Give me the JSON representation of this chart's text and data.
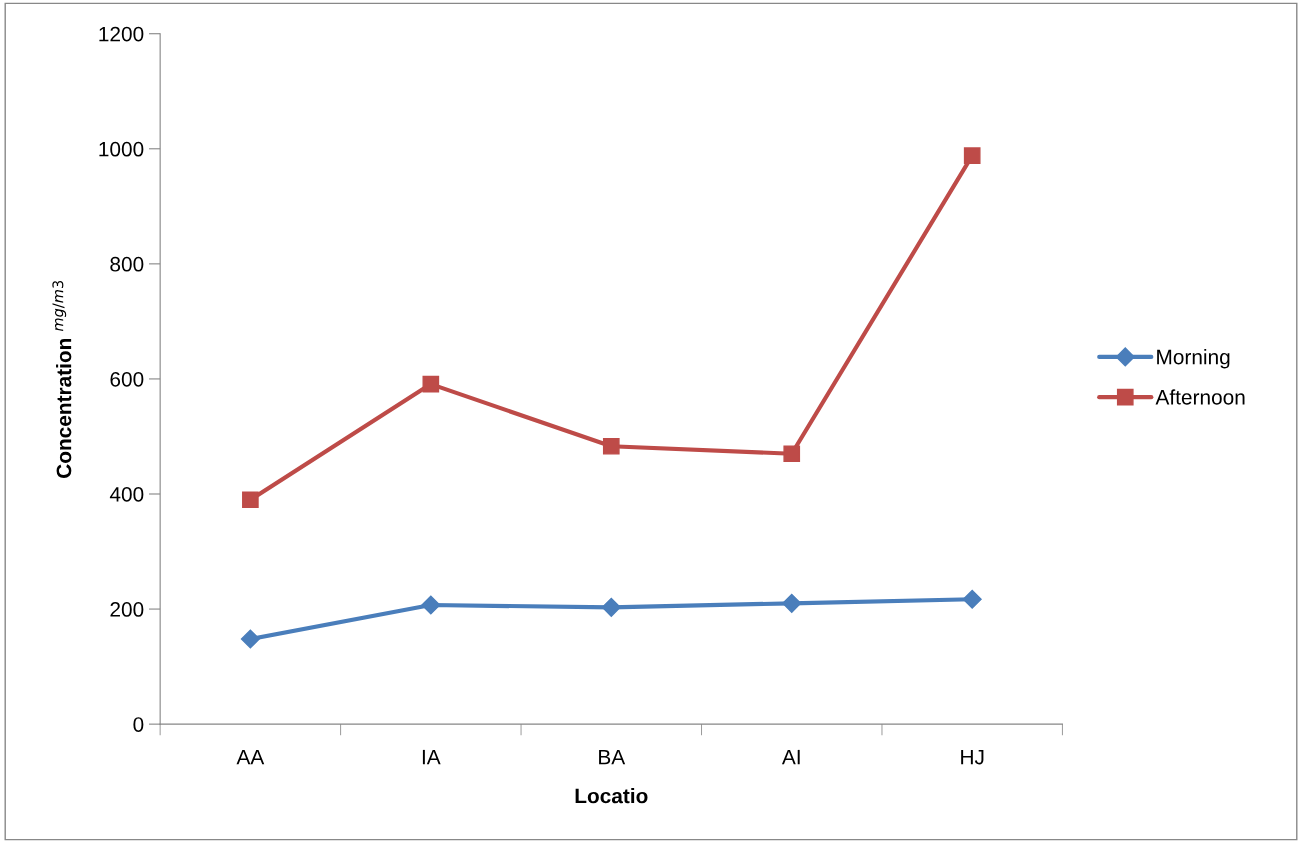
{
  "chart_data": {
    "type": "line",
    "xlabel": "Locatio",
    "ylabel": "Concentration $^{mg/m3}$",
    "categories": [
      "AA",
      "IA",
      "BA",
      "AI",
      "HJ"
    ],
    "series": [
      {
        "name": "Morning",
        "color": "#4a7ebb",
        "marker": "diamond",
        "values": [
          148,
          207,
          203,
          210,
          217
        ]
      },
      {
        "name": "Afternoon",
        "color": "#be4b48",
        "marker": "square",
        "values": [
          390,
          591,
          483,
          470,
          988
        ]
      }
    ],
    "ylim": [
      0,
      1200
    ],
    "yticks": [
      0,
      200,
      400,
      600,
      800,
      1000,
      1200
    ],
    "grid": false,
    "legend": "right",
    "line_style": "solid"
  }
}
